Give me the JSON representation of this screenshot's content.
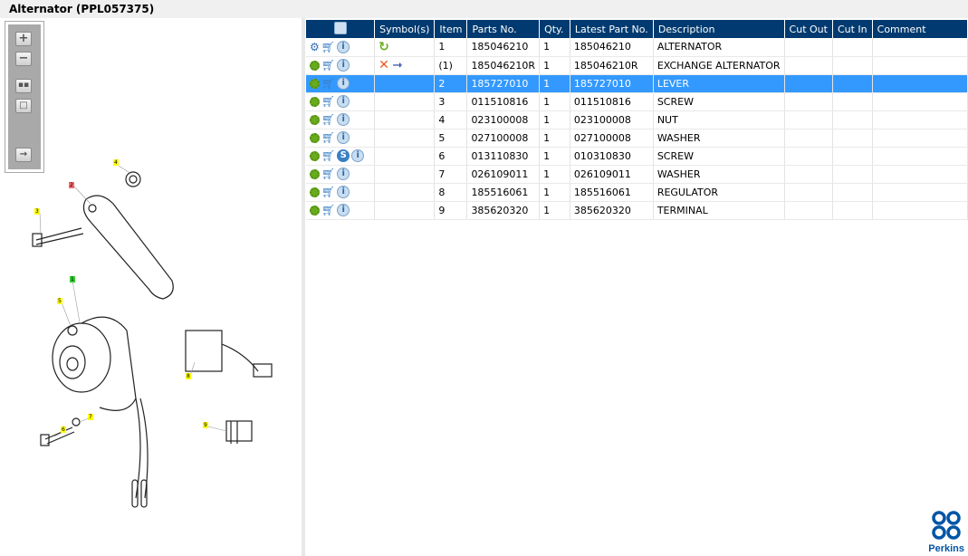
{
  "title": "Alternator (PPL057375)",
  "toolbar": [
    "zoom-in",
    "zoom-out",
    "fit-all",
    "actual-size",
    "toggle-list"
  ],
  "table": {
    "columns": [
      "",
      "Symbol(s)",
      "Item",
      "Parts No.",
      "Qty.",
      "Latest Part No.",
      "Description",
      "Cut Out",
      "Cut In",
      "Comment"
    ],
    "rows": [
      {
        "item": "1",
        "part": "185046210",
        "qty": "1",
        "latest": "185046210",
        "desc": "ALTERNATOR",
        "symbol": "cycle",
        "gear": "blue"
      },
      {
        "item": "(1)",
        "part": "185046210R",
        "qty": "1",
        "latest": "185046210R",
        "desc": "EXCHANGE ALTERNATOR",
        "symbol": "cross-arrow"
      },
      {
        "item": "2",
        "part": "185727010",
        "qty": "1",
        "latest": "185727010",
        "desc": "LEVER",
        "selected": true
      },
      {
        "item": "3",
        "part": "011510816",
        "qty": "1",
        "latest": "011510816",
        "desc": "SCREW"
      },
      {
        "item": "4",
        "part": "023100008",
        "qty": "1",
        "latest": "023100008",
        "desc": "NUT"
      },
      {
        "item": "5",
        "part": "027100008",
        "qty": "1",
        "latest": "027100008",
        "desc": "WASHER"
      },
      {
        "item": "6",
        "part": "013110830",
        "qty": "1",
        "latest": "010310830",
        "desc": "SCREW",
        "s": "S"
      },
      {
        "item": "7",
        "part": "026109011",
        "qty": "1",
        "latest": "026109011",
        "desc": "WASHER"
      },
      {
        "item": "8",
        "part": "185516061",
        "qty": "1",
        "latest": "185516061",
        "desc": "REGULATOR"
      },
      {
        "item": "9",
        "part": "385620320",
        "qty": "1",
        "latest": "385620320",
        "desc": "TERMINAL"
      }
    ]
  },
  "callouts": [
    "4",
    "2",
    "3",
    "1",
    "5",
    "8",
    "7",
    "6",
    "9"
  ],
  "logo": "Perkins",
  "colors": {
    "header": "#003a70",
    "selected": "#3399ff"
  }
}
